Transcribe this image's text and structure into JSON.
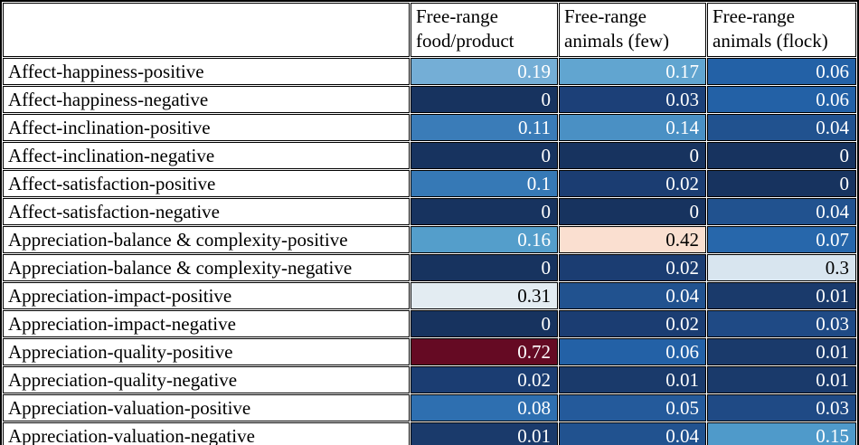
{
  "chart_data": {
    "type": "heatmap",
    "title": "",
    "columns": [
      "Free-range food/product",
      "Free-range animals (few)",
      "Free-range animals (flock)"
    ],
    "column_lines": [
      [
        "Free-range",
        "food/product"
      ],
      [
        "Free-range",
        "animals (few)"
      ],
      [
        "Free-range",
        "animals (flock)"
      ]
    ],
    "rows": [
      "Affect-happiness-positive",
      "Affect-happiness-negative",
      "Affect-inclination-positive",
      "Affect-inclination-negative",
      "Affect-satisfaction-positive",
      "Affect-satisfaction-negative",
      "Appreciation-balance & complexity-positive",
      "Appreciation-balance & complexity-negative",
      "Appreciation-impact-positive",
      "Appreciation-impact-negative",
      "Appreciation-quality-positive",
      "Appreciation-quality-negative",
      "Appreciation-valuation-positive",
      "Appreciation-valuation-negative"
    ],
    "values": [
      [
        0.19,
        0.17,
        0.06
      ],
      [
        0,
        0.03,
        0.06
      ],
      [
        0.11,
        0.14,
        0.04
      ],
      [
        0,
        0,
        0
      ],
      [
        0.1,
        0.02,
        0
      ],
      [
        0,
        0,
        0.04
      ],
      [
        0.16,
        0.42,
        0.07
      ],
      [
        0,
        0.02,
        0.3
      ],
      [
        0.31,
        0.04,
        0.01
      ],
      [
        0,
        0.02,
        0.03
      ],
      [
        0.72,
        0.06,
        0.01
      ],
      [
        0.02,
        0.01,
        0.01
      ],
      [
        0.08,
        0.05,
        0.03
      ],
      [
        0.01,
        0.04,
        0.15
      ]
    ],
    "value_labels": [
      [
        "0.19",
        "0.17",
        "0.06"
      ],
      [
        "0",
        "0.03",
        "0.06"
      ],
      [
        "0.11",
        "0.14",
        "0.04"
      ],
      [
        "0",
        "0",
        "0"
      ],
      [
        "0.1",
        "0.02",
        "0"
      ],
      [
        "0",
        "0",
        "0.04"
      ],
      [
        "0.16",
        "0.42",
        "0.07"
      ],
      [
        "0",
        "0.02",
        "0.3"
      ],
      [
        "0.31",
        "0.04",
        "0.01"
      ],
      [
        "0",
        "0.02",
        "0.03"
      ],
      [
        "0.72",
        "0.06",
        "0.01"
      ],
      [
        "0.02",
        "0.01",
        "0.01"
      ],
      [
        "0.08",
        "0.05",
        "0.03"
      ],
      [
        "0.01",
        "0.04",
        "0.15"
      ]
    ],
    "cell_colors": [
      [
        "#74aed6",
        "#61a5d0",
        "#2361a6"
      ],
      [
        "#17335f",
        "#1c4078",
        "#2361a6"
      ],
      [
        "#3a7cb8",
        "#4a90c4",
        "#21528f"
      ],
      [
        "#17335f",
        "#17335f",
        "#17335f"
      ],
      [
        "#3679b6",
        "#1b3d72",
        "#17335f"
      ],
      [
        "#17335f",
        "#17335f",
        "#21528f"
      ],
      [
        "#549ecb",
        "#fadfd0",
        "#2767ab"
      ],
      [
        "#17335f",
        "#1b3d72",
        "#d8e5ef"
      ],
      [
        "#e3ecf2",
        "#21528f",
        "#1a3a6b"
      ],
      [
        "#17335f",
        "#1b3d72",
        "#1f4a85"
      ],
      [
        "#650a23",
        "#2361a6",
        "#1a3a6b"
      ],
      [
        "#1b3d72",
        "#1a3a6b",
        "#1a3a6b"
      ],
      [
        "#2e6fb0",
        "#245a9b",
        "#1f4a85"
      ],
      [
        "#1a3a6b",
        "#21528f",
        "#4f9aca"
      ]
    ],
    "text_colors": [
      [
        "#ffffff",
        "#ffffff",
        "#ffffff"
      ],
      [
        "#ffffff",
        "#ffffff",
        "#ffffff"
      ],
      [
        "#ffffff",
        "#ffffff",
        "#ffffff"
      ],
      [
        "#ffffff",
        "#ffffff",
        "#ffffff"
      ],
      [
        "#ffffff",
        "#ffffff",
        "#ffffff"
      ],
      [
        "#ffffff",
        "#ffffff",
        "#ffffff"
      ],
      [
        "#ffffff",
        "#000000",
        "#ffffff"
      ],
      [
        "#ffffff",
        "#ffffff",
        "#000000"
      ],
      [
        "#000000",
        "#ffffff",
        "#ffffff"
      ],
      [
        "#ffffff",
        "#ffffff",
        "#ffffff"
      ],
      [
        "#ffffff",
        "#ffffff",
        "#ffffff"
      ],
      [
        "#ffffff",
        "#ffffff",
        "#ffffff"
      ],
      [
        "#ffffff",
        "#ffffff",
        "#ffffff"
      ],
      [
        "#ffffff",
        "#ffffff",
        "#ffffff"
      ]
    ],
    "colormap": {
      "low_color": "#17335f",
      "mid_color": "#f5f5f5",
      "high_color": "#650a23",
      "min": 0,
      "max": 0.72,
      "description": "diverging blue-white-red"
    },
    "layout": {
      "grid_color": "#000000",
      "header_background": "#ffffff",
      "row_label_background": "#ffffff"
    }
  }
}
